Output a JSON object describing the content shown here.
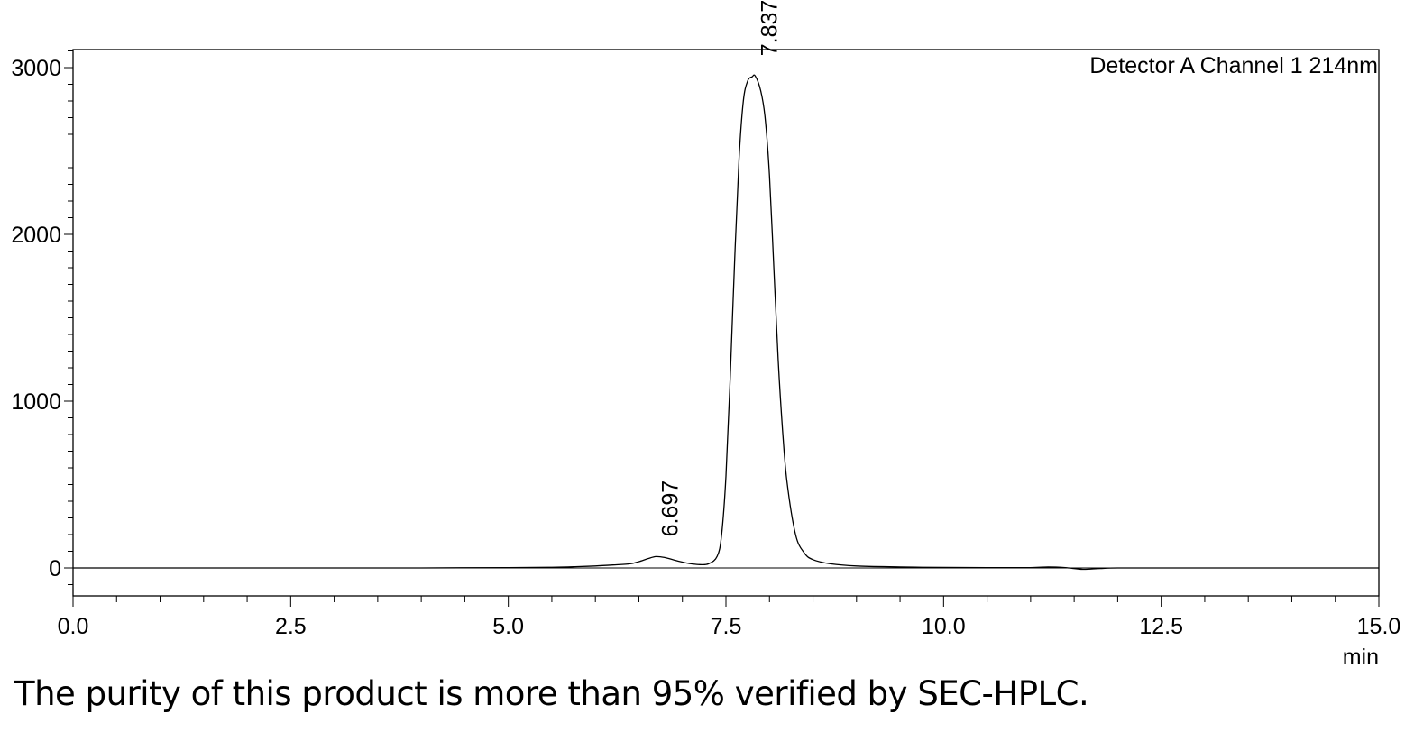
{
  "chart_data": {
    "type": "line",
    "title": "",
    "xlabel": "min",
    "ylabel": "",
    "xlim": [
      0.0,
      15.0
    ],
    "ylim": [
      -170,
      3120
    ],
    "x_ticks": [
      "0.0",
      "2.5",
      "5.0",
      "7.5",
      "10.0",
      "12.5",
      "15.0"
    ],
    "y_ticks": [
      "0",
      "1000",
      "2000",
      "3000"
    ],
    "series": [
      {
        "name": "Detector A Channel 1 214nm",
        "x": [
          0.0,
          2.0,
          4.0,
          5.0,
          5.5,
          5.8,
          6.0,
          6.2,
          6.4,
          6.5,
          6.6,
          6.697,
          6.8,
          6.9,
          7.0,
          7.1,
          7.2,
          7.3,
          7.4,
          7.45,
          7.5,
          7.55,
          7.6,
          7.65,
          7.7,
          7.75,
          7.8,
          7.837,
          7.9,
          7.95,
          8.0,
          8.05,
          8.1,
          8.15,
          8.2,
          8.3,
          8.4,
          8.5,
          8.7,
          9.0,
          9.5,
          10.0,
          10.5,
          11.0,
          11.2,
          11.4,
          11.6,
          11.8,
          12.0,
          12.5,
          13.0,
          15.0
        ],
        "y": [
          0,
          0,
          0,
          2,
          4,
          8,
          12,
          18,
          25,
          38,
          55,
          68,
          62,
          48,
          35,
          25,
          20,
          25,
          70,
          200,
          550,
          1150,
          1850,
          2450,
          2800,
          2920,
          2945,
          2950,
          2860,
          2700,
          2350,
          1800,
          1250,
          830,
          520,
          200,
          90,
          50,
          25,
          12,
          6,
          3,
          2,
          2,
          6,
          2,
          -8,
          -3,
          0,
          0,
          0,
          0
        ]
      }
    ],
    "peak_labels": [
      {
        "x": 6.697,
        "y": 68,
        "text": "6.697"
      },
      {
        "x": 7.837,
        "y": 2950,
        "text": "7.837"
      }
    ],
    "legend": {
      "text": "Detector A Channel 1 214nm",
      "placement": "top-right"
    },
    "grid": false
  },
  "caption": "The purity of this product is more than 95% verified by SEC-HPLC."
}
